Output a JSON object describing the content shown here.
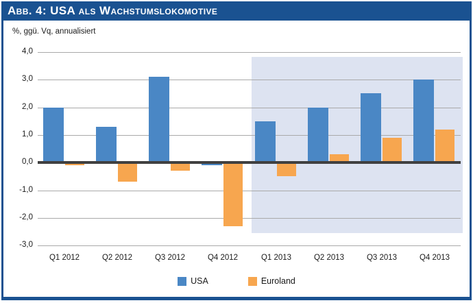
{
  "header": {
    "title": "Abb. 4: USA als Wachstumslokomotive"
  },
  "chart_data": {
    "type": "bar",
    "title": "Abb. 4: USA als Wachstumslokomotive",
    "subtitle": "%, ggü. Vq, annualisiert",
    "categories": [
      "Q1 2012",
      "Q2 2012",
      "Q3 2012",
      "Q4 2012",
      "Q1 2013",
      "Q2 2013",
      "Q3 2013",
      "Q4 2013"
    ],
    "series": [
      {
        "name": "USA",
        "color": "#4a87c5",
        "values": [
          2.0,
          1.3,
          3.1,
          -0.1,
          1.5,
          2.0,
          2.5,
          3.0
        ]
      },
      {
        "name": "Euroland",
        "color": "#f7a64f",
        "values": [
          -0.1,
          -0.7,
          -0.3,
          -2.3,
          -0.5,
          0.3,
          0.9,
          1.2
        ]
      }
    ],
    "ylim": [
      -3.0,
      4.0
    ],
    "ytick_labels": [
      "4,0",
      "3,0",
      "2,0",
      "1,0",
      "0,0",
      "-1,0",
      "-2,0",
      "-3,0"
    ],
    "grid": true,
    "legend_position": "bottom",
    "forecast_region": {
      "covers_categories": [
        "Q1 2013",
        "Q2 2013",
        "Q3 2013",
        "Q4 2013"
      ],
      "shade_color": "#dde3f1"
    },
    "accent_color": "#1a5291",
    "zero_axis_color": "#404040",
    "gridline_color": "#a9a9a9"
  }
}
